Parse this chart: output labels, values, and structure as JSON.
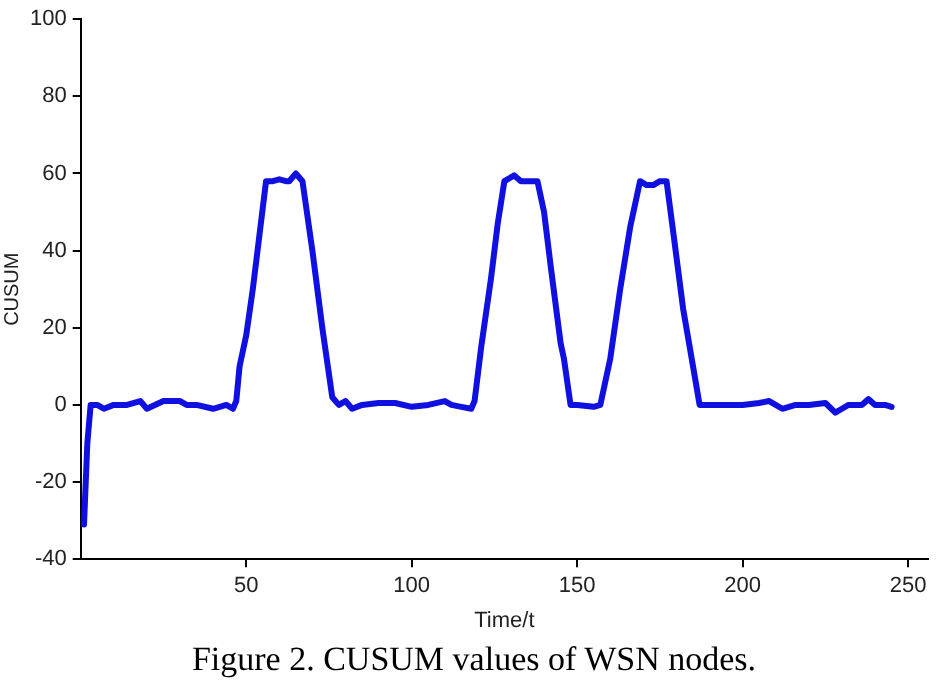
{
  "chart_data": {
    "type": "line",
    "xlabel": "Time/t",
    "ylabel": "CUSUM",
    "annotations": [
      "Figure 2.  CUSUM values of WSN nodes."
    ],
    "xlim": [
      0,
      256
    ],
    "xticks": [
      50,
      100,
      150,
      200,
      250
    ],
    "ylim": [
      -40,
      100
    ],
    "yticks": [
      -40,
      -20,
      0,
      20,
      40,
      60,
      80,
      100
    ],
    "grid": false,
    "legend": false,
    "marker": "none",
    "line_style": "solid",
    "series": [
      {
        "color": "#1010e0",
        "x": [
          1,
          2,
          3,
          5,
          7,
          10,
          14,
          18,
          20,
          25,
          30,
          32,
          35,
          40,
          44,
          46,
          47,
          48,
          50,
          52,
          54,
          56,
          58,
          60,
          62,
          63,
          65,
          67,
          70,
          73,
          76,
          78,
          80,
          82,
          85,
          90,
          95,
          100,
          105,
          110,
          112,
          115,
          118,
          119,
          121,
          124,
          126,
          128,
          131,
          133,
          135,
          138,
          140,
          142,
          145,
          146,
          148,
          150,
          155,
          157,
          160,
          163,
          166,
          169,
          171,
          173,
          175,
          177,
          179,
          182,
          185,
          187,
          190,
          195,
          200,
          205,
          208,
          212,
          216,
          220,
          225,
          228,
          230,
          232,
          236,
          238,
          240,
          243,
          245
        ],
        "values": [
          -31,
          -10,
          0,
          0,
          -1,
          0,
          0,
          1,
          -1,
          1,
          1,
          0,
          0,
          -1,
          0,
          -1,
          1,
          10,
          18,
          30,
          44,
          58,
          58,
          58.5,
          58,
          58,
          60,
          58,
          40,
          20,
          2,
          0,
          1,
          -1,
          0,
          0.5,
          0.5,
          -0.5,
          0,
          1,
          0,
          -0.5,
          -1,
          1,
          15,
          33,
          47,
          58,
          59.5,
          58,
          58,
          58,
          50,
          36,
          16,
          12,
          0,
          0,
          -0.5,
          0,
          12,
          30,
          46,
          58,
          57,
          57,
          58,
          58,
          45,
          25,
          10,
          0,
          0,
          0,
          0,
          0.5,
          1,
          -1,
          0,
          0,
          0.5,
          -2,
          -1,
          0,
          0,
          1.5,
          0,
          0,
          -0.5
        ]
      }
    ]
  }
}
